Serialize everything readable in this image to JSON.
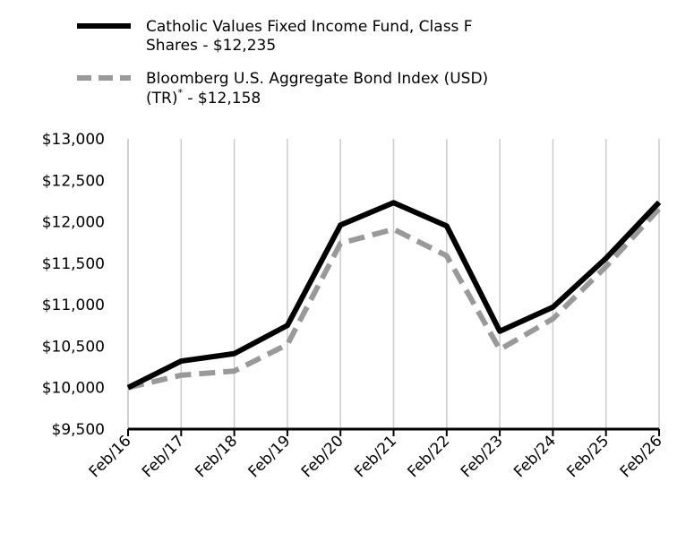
{
  "chart_data": {
    "type": "line",
    "categories": [
      "Feb/16",
      "Feb/17",
      "Feb/18",
      "Feb/19",
      "Feb/20",
      "Feb/21",
      "Feb/22",
      "Feb/23",
      "Feb/24",
      "Feb/25",
      "Feb/26"
    ],
    "series": [
      {
        "name": "Catholic Values Fixed Income Fund, Class F Shares - $12,235",
        "legend_lines": [
          "Catholic Values Fixed Income Fund, Class F",
          "Shares - $12,235"
        ],
        "values": [
          10000,
          10320,
          10410,
          10750,
          11960,
          12230,
          11950,
          10680,
          10970,
          11560,
          12235
        ],
        "color": "#000000",
        "style": "solid"
      },
      {
        "name": "Bloomberg U.S. Aggregate Bond Index (USD) (TR)* - $12,158",
        "legend_lines": [
          "Bloomberg U.S. Aggregate Bond Index (USD)",
          "(TR)",
          "*",
          " - $12,158"
        ],
        "values": [
          10000,
          10150,
          10200,
          10520,
          11740,
          11910,
          11590,
          10460,
          10830,
          11460,
          12158
        ],
        "color": "#999999",
        "style": "dashed"
      }
    ],
    "yticks": [
      "$9,500",
      "$10,000",
      "$10,500",
      "$11,000",
      "$11,500",
      "$12,000",
      "$12,500",
      "$13,000"
    ],
    "ylim": [
      9500,
      13000
    ],
    "grid": "vertical",
    "legend_position": "top-left",
    "title": "",
    "xlabel": "",
    "ylabel": ""
  }
}
